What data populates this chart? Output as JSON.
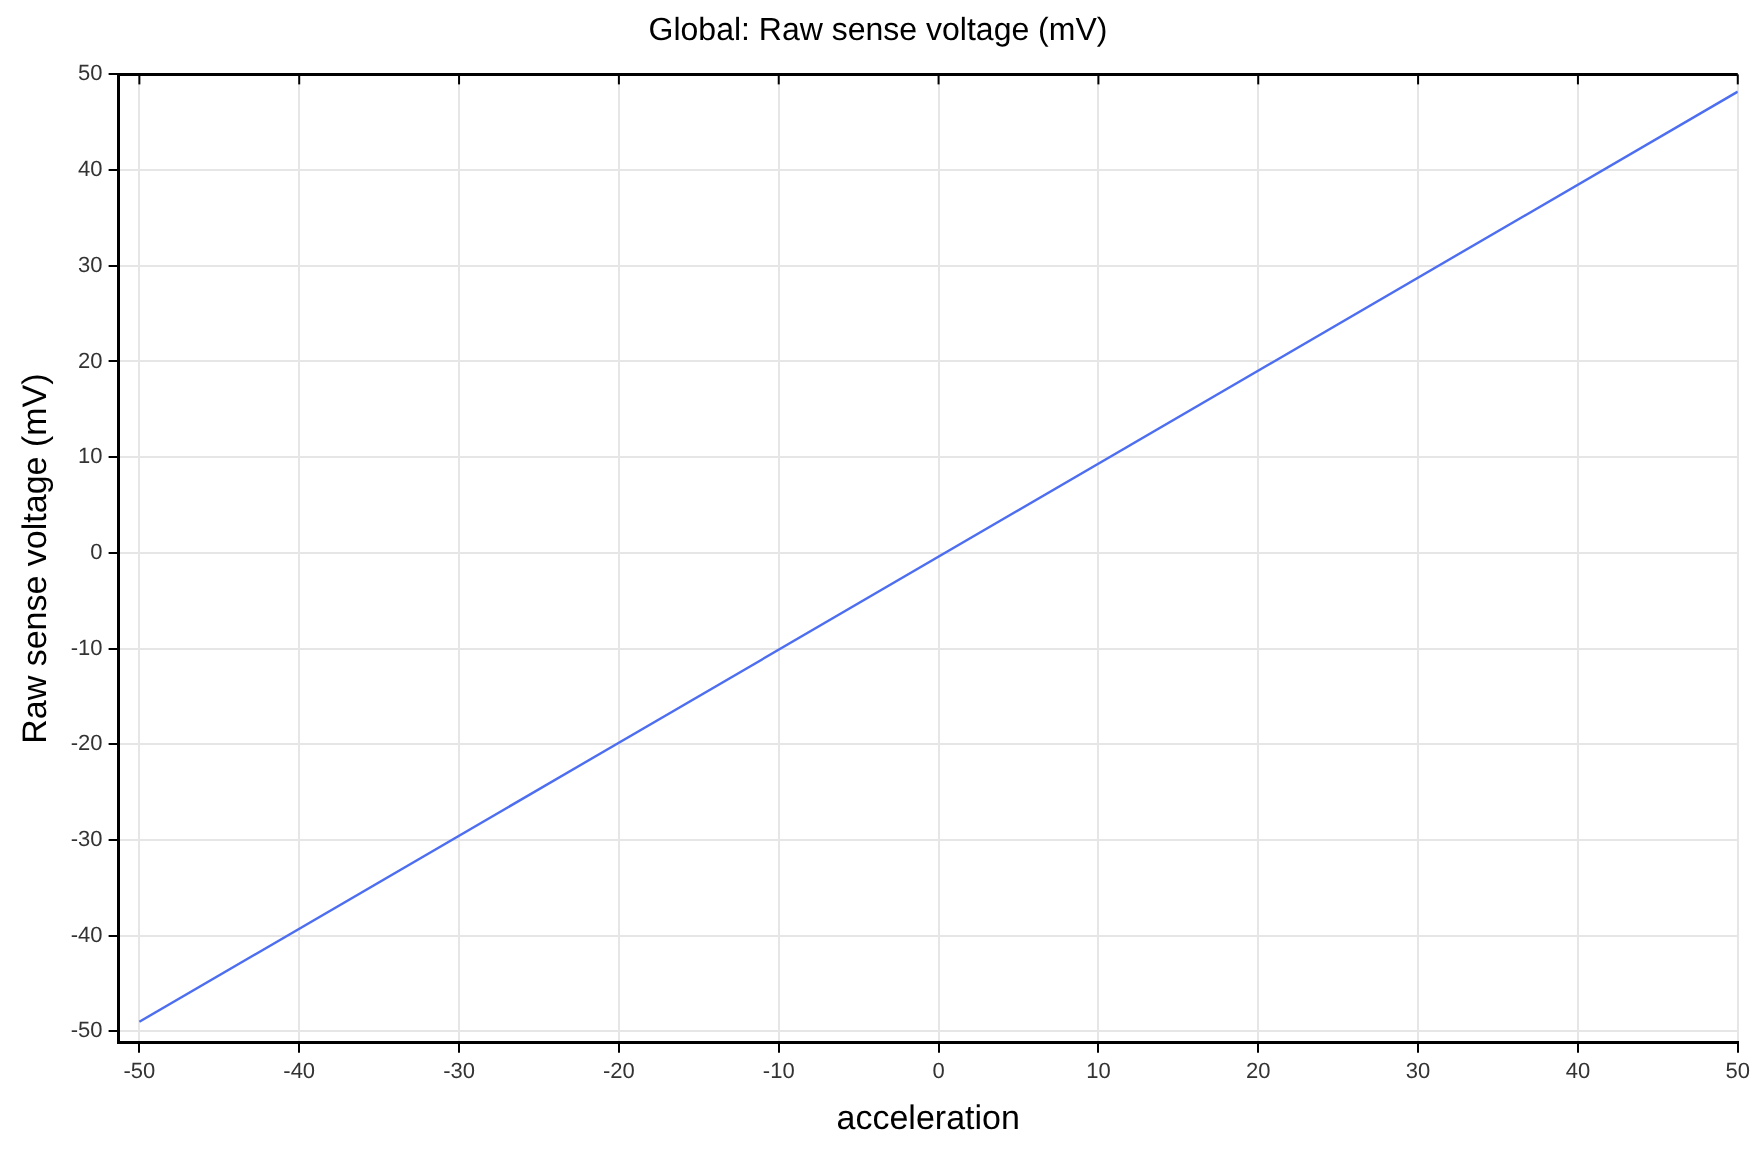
{
  "chart_data": {
    "type": "line",
    "title": "Global: Raw sense voltage (mV)",
    "xlabel": "acceleration",
    "ylabel": "Raw sense voltage (mV)",
    "x": [
      -50,
      50
    ],
    "series": [
      {
        "color": "#4d6ef0",
        "values": [
          -49,
          48.2
        ]
      }
    ],
    "xlim": [
      -51.3,
      50
    ],
    "ylim": [
      -51.2,
      50
    ],
    "xticks": [
      -50,
      -40,
      -30,
      -20,
      -10,
      0,
      10,
      20,
      30,
      40,
      50
    ],
    "yticks": [
      -50,
      -40,
      -30,
      -20,
      -10,
      0,
      10,
      20,
      30,
      40,
      50
    ],
    "grid": true,
    "legend": false,
    "marker": "none",
    "line_style": "solid"
  }
}
